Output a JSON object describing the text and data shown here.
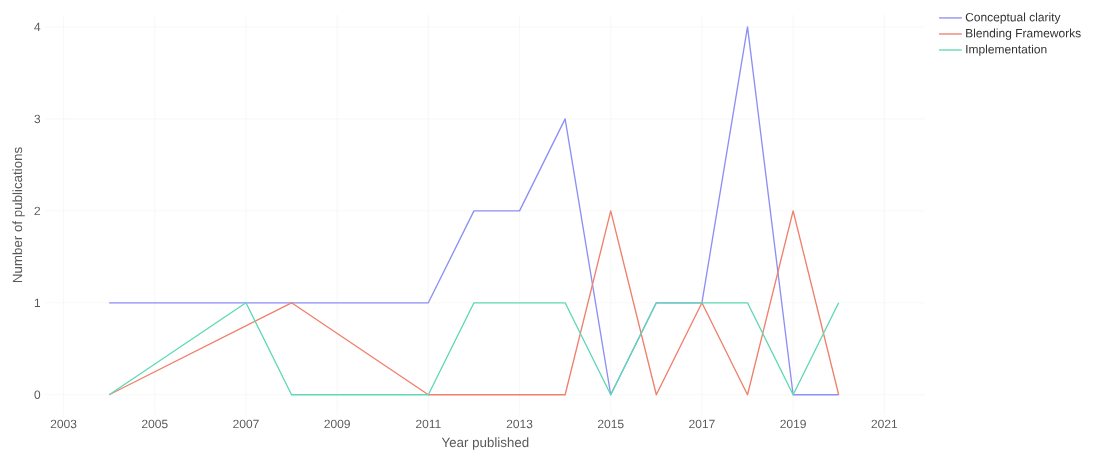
{
  "chart_data": {
    "type": "line",
    "xlabel": "Year published",
    "ylabel": "Number of publications",
    "series": [
      {
        "name": "Conceptual clarity",
        "color": "#8c8ff5",
        "x": [
          2004,
          2011,
          2012,
          2013,
          2014,
          2015,
          2016,
          2017,
          2018,
          2019,
          2020
        ],
        "values": [
          1,
          1,
          2,
          2,
          3,
          0,
          1,
          1,
          4,
          0,
          0
        ]
      },
      {
        "name": "Blending Frameworks",
        "color": "#f07f6b",
        "x": [
          2004,
          2008,
          2011,
          2012,
          2013,
          2014,
          2015,
          2016,
          2017,
          2018,
          2019,
          2020
        ],
        "values": [
          0,
          1,
          0,
          0,
          0,
          0,
          2,
          0,
          1,
          0,
          2,
          0
        ]
      },
      {
        "name": "Implementation",
        "color": "#5fd9b5",
        "x": [
          2004,
          2007,
          2008,
          2011,
          2012,
          2013,
          2014,
          2015,
          2016,
          2017,
          2018,
          2019,
          2020
        ],
        "values": [
          0,
          1,
          0,
          0,
          1,
          1,
          1,
          0,
          1,
          1,
          1,
          0,
          1
        ]
      }
    ],
    "xlim": [
      2002.6,
      2021.9
    ],
    "ylim": [
      -0.22,
      4.13
    ],
    "xticks": [
      2003,
      2005,
      2007,
      2009,
      2011,
      2013,
      2015,
      2017,
      2019,
      2021
    ],
    "yticks": [
      0,
      1,
      2,
      3,
      4
    ],
    "grid": true,
    "legend": "top right",
    "marker": "none",
    "line_style": "solid"
  }
}
